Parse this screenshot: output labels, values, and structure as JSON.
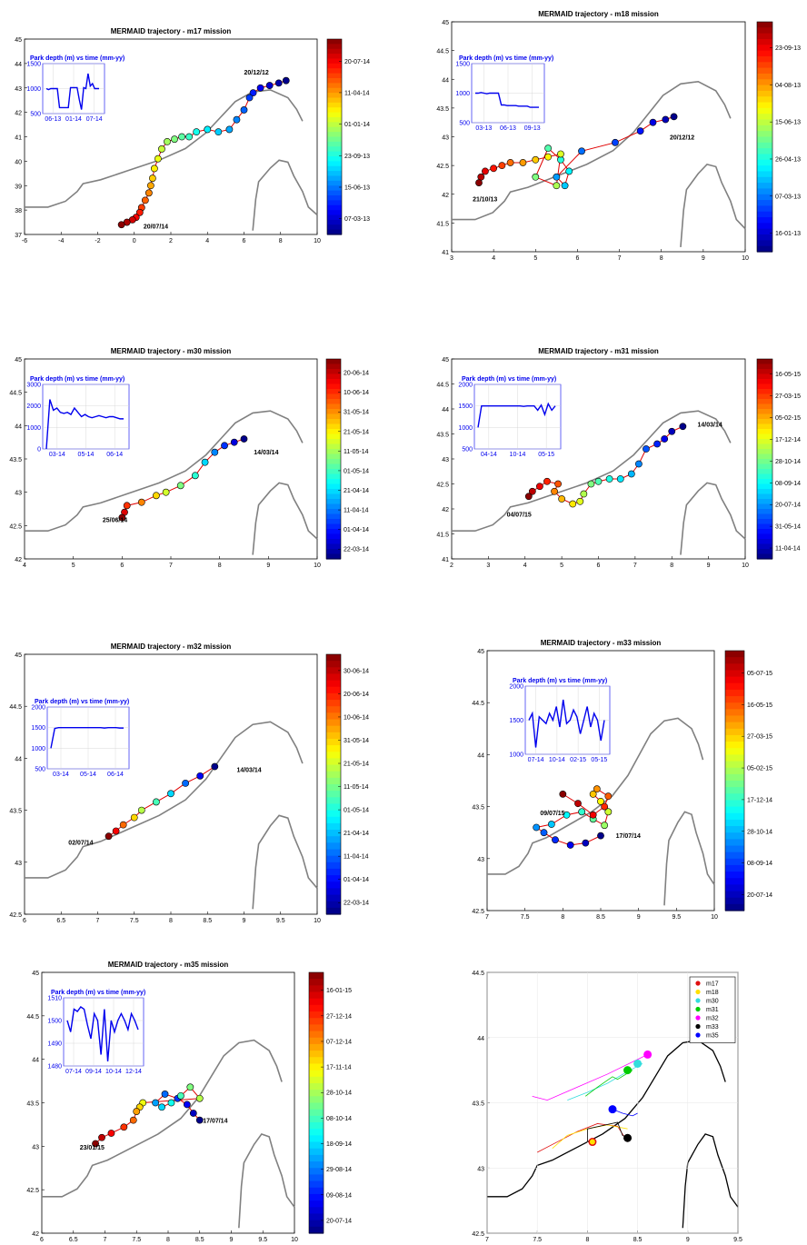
{
  "chart_data": [
    {
      "type": "scatter",
      "title": "MERMAID trajectory - m17 mission",
      "xlim": [
        -6,
        10
      ],
      "ylim": [
        37,
        45
      ],
      "xticks": [
        -6,
        -4,
        -2,
        0,
        2,
        4,
        6,
        8,
        10
      ],
      "yticks": [
        37,
        38,
        39,
        40,
        41,
        42,
        43,
        44,
        45
      ],
      "annotations": [
        {
          "text": "20/12/12",
          "x": 6.0,
          "y": 43.55
        },
        {
          "text": "20/07/14",
          "x": 0.5,
          "y": 37.25
        }
      ],
      "track_lon": [
        8.3,
        7.9,
        7.4,
        6.9,
        6.5,
        6.3,
        6.0,
        5.6,
        5.2,
        4.6,
        4.0,
        3.4,
        3.0,
        2.6,
        2.2,
        1.8,
        1.5,
        1.3,
        1.1,
        1.0,
        0.9,
        0.8,
        0.6,
        0.4,
        0.3,
        0.1,
        -0.1,
        -0.4,
        -0.7
      ],
      "track_lat": [
        43.3,
        43.2,
        43.1,
        43.0,
        42.8,
        42.6,
        42.1,
        41.7,
        41.3,
        41.2,
        41.3,
        41.2,
        41.0,
        41.0,
        40.9,
        40.8,
        40.5,
        40.1,
        39.7,
        39.3,
        39.0,
        38.7,
        38.4,
        38.1,
        37.9,
        37.7,
        37.6,
        37.5,
        37.4
      ],
      "colorbar": {
        "labels": [
          "20-07-14",
          "11-04-14",
          "01-01-14",
          "23-09-13",
          "15-06-13",
          "07-03-13"
        ]
      },
      "inset": {
        "title": "Park depth (m) vs time (mm-yy)",
        "ylim": [
          500,
          1500
        ],
        "yticks": [
          "500",
          "1000",
          "1500"
        ],
        "xticks": [
          "06-13",
          "01-14",
          "07-14"
        ],
        "values": [
          1000,
          980,
          1000,
          1000,
          1000,
          1000,
          620,
          620,
          620,
          620,
          620,
          1020,
          1020,
          1020,
          1020,
          780,
          580,
          1020,
          1000,
          1300,
          1050,
          1100,
          1000,
          1000,
          1000
        ]
      }
    },
    {
      "type": "scatter",
      "title": "MERMAID trajectory - m18 mission",
      "xlim": [
        3,
        10
      ],
      "ylim": [
        41,
        45
      ],
      "xticks": [
        3,
        4,
        5,
        6,
        7,
        8,
        9,
        10
      ],
      "yticks": [
        41,
        41.5,
        42,
        42.5,
        43,
        43.5,
        44,
        44.5,
        45
      ],
      "annotations": [
        {
          "text": "20/12/12",
          "x": 8.2,
          "y": 42.95
        },
        {
          "text": "21/10/13",
          "x": 3.5,
          "y": 41.88
        }
      ],
      "track_lon": [
        8.3,
        8.1,
        7.8,
        7.5,
        6.9,
        6.1,
        5.5,
        5.7,
        5.8,
        5.6,
        5.3,
        5.0,
        5.5,
        5.6,
        5.3,
        5.0,
        4.7,
        4.4,
        4.2,
        4.0,
        3.8,
        3.7,
        3.65
      ],
      "track_lat": [
        43.35,
        43.3,
        43.25,
        43.1,
        42.9,
        42.75,
        42.3,
        42.15,
        42.4,
        42.6,
        42.8,
        42.3,
        42.15,
        42.7,
        42.65,
        42.6,
        42.55,
        42.55,
        42.5,
        42.45,
        42.4,
        42.3,
        42.2
      ],
      "colorbar": {
        "labels": [
          "23-09-13",
          "04-08-13",
          "15-06-13",
          "26-04-13",
          "07-03-13",
          "16-01-13"
        ]
      },
      "inset": {
        "title": "Park depth (m) vs time (mm-yy)",
        "ylim": [
          500,
          1500
        ],
        "yticks": [
          "500",
          "1000",
          "1500"
        ],
        "xticks": [
          "03-13",
          "06-13",
          "09-13"
        ],
        "values": [
          1000,
          1000,
          1010,
          1000,
          990,
          1000,
          1000,
          1000,
          1000,
          800,
          800,
          790,
          790,
          790,
          790,
          780,
          780,
          780,
          780,
          760,
          760,
          760,
          760
        ]
      }
    },
    {
      "type": "scatter",
      "title": "MERMAID trajectory - m30 mission",
      "xlim": [
        4,
        10
      ],
      "ylim": [
        42,
        45
      ],
      "xticks": [
        4,
        5,
        6,
        7,
        8,
        9,
        10
      ],
      "yticks": [
        42,
        42.5,
        43,
        43.5,
        44,
        44.5,
        45
      ],
      "annotations": [
        {
          "text": "14/03/14",
          "x": 8.7,
          "y": 43.57
        },
        {
          "text": "25/06/14",
          "x": 5.6,
          "y": 42.55
        }
      ],
      "track_lon": [
        8.5,
        8.3,
        8.1,
        7.9,
        7.7,
        7.5,
        7.2,
        6.9,
        6.7,
        6.4,
        6.1,
        6.05,
        6.0
      ],
      "track_lat": [
        43.8,
        43.75,
        43.7,
        43.6,
        43.45,
        43.25,
        43.1,
        43.0,
        42.95,
        42.85,
        42.8,
        42.7,
        42.62
      ],
      "colorbar": {
        "labels": [
          "20-06-14",
          "10-06-14",
          "31-05-14",
          "21-05-14",
          "11-05-14",
          "01-05-14",
          "21-04-14",
          "11-04-14",
          "01-04-14",
          "22-03-14"
        ]
      },
      "inset": {
        "title": "Park depth (m) vs time (mm-yy)",
        "ylim": [
          0,
          3000
        ],
        "yticks": [
          "0",
          "1000",
          "2000",
          "3000"
        ],
        "xticks": [
          "03-14",
          "05-14",
          "06-14"
        ],
        "values": [
          0,
          2300,
          1800,
          1900,
          1700,
          1650,
          1700,
          1600,
          1900,
          1700,
          1500,
          1600,
          1500,
          1450,
          1500,
          1550,
          1500,
          1450,
          1500,
          1500,
          1450,
          1400,
          1400
        ]
      }
    },
    {
      "type": "scatter",
      "title": "MERMAID trajectory - m31 mission",
      "xlim": [
        2,
        10
      ],
      "ylim": [
        41,
        45
      ],
      "xticks": [
        2,
        3,
        4,
        5,
        6,
        7,
        8,
        9,
        10
      ],
      "yticks": [
        41,
        41.5,
        42,
        42.5,
        43,
        43.5,
        44,
        44.5,
        45
      ],
      "annotations": [
        {
          "text": "14/03/14",
          "x": 8.7,
          "y": 43.65
        },
        {
          "text": "04/07/15",
          "x": 3.5,
          "y": 41.85
        }
      ],
      "track_lon": [
        8.3,
        8.0,
        7.8,
        7.6,
        7.3,
        7.1,
        6.9,
        6.6,
        6.3,
        6.0,
        5.8,
        5.6,
        5.5,
        5.3,
        5.0,
        4.8,
        4.9,
        4.6,
        4.4,
        4.2,
        4.1
      ],
      "track_lat": [
        43.65,
        43.55,
        43.4,
        43.3,
        43.2,
        42.9,
        42.7,
        42.6,
        42.6,
        42.55,
        42.5,
        42.3,
        42.15,
        42.1,
        42.2,
        42.35,
        42.5,
        42.55,
        42.45,
        42.35,
        42.25
      ],
      "colorbar": {
        "labels": [
          "16-05-15",
          "27-03-15",
          "05-02-15",
          "17-12-14",
          "28-10-14",
          "08-09-14",
          "20-07-14",
          "31-05-14",
          "11-04-14"
        ]
      },
      "inset": {
        "title": "Park depth (m) vs time (mm-yy)",
        "ylim": [
          500,
          2000
        ],
        "yticks": [
          "500",
          "1000",
          "1500",
          "2000"
        ],
        "xticks": [
          "04-14",
          "10-14",
          "05-15"
        ],
        "values": [
          1000,
          1500,
          1500,
          1500,
          1500,
          1500,
          1500,
          1500,
          1500,
          1500,
          1500,
          1500,
          1500,
          1490,
          1500,
          1500,
          1500,
          1400,
          1520,
          1300,
          1550,
          1400,
          1500
        ]
      }
    },
    {
      "type": "scatter",
      "title": "MERMAID trajectory - m32 mission",
      "xlim": [
        6,
        10
      ],
      "ylim": [
        42.5,
        45
      ],
      "xticks": [
        6,
        6.5,
        7,
        7.5,
        8,
        8.5,
        9,
        9.5,
        10
      ],
      "yticks": [
        42.5,
        43,
        43.5,
        44,
        44.5,
        45
      ],
      "annotations": [
        {
          "text": "14/03/14",
          "x": 8.9,
          "y": 43.87
        },
        {
          "text": "02/07/14",
          "x": 6.6,
          "y": 43.17
        }
      ],
      "track_lon": [
        8.6,
        8.4,
        8.2,
        8.0,
        7.8,
        7.6,
        7.5,
        7.35,
        7.25,
        7.15
      ],
      "track_lat": [
        43.92,
        43.83,
        43.76,
        43.66,
        43.58,
        43.5,
        43.43,
        43.36,
        43.3,
        43.25
      ],
      "colorbar": {
        "labels": [
          "30-06-14",
          "20-06-14",
          "10-06-14",
          "31-05-14",
          "21-05-14",
          "11-05-14",
          "01-05-14",
          "21-04-14",
          "11-04-14",
          "01-04-14",
          "22-03-14"
        ]
      },
      "inset": {
        "title": "Park depth (m) vs time (mm-yy)",
        "ylim": [
          500,
          2000
        ],
        "yticks": [
          "500",
          "1000",
          "1500",
          "2000"
        ],
        "xticks": [
          "03-14",
          "05-14",
          "06-14"
        ],
        "values": [
          1000,
          1480,
          1500,
          1500,
          1500,
          1500,
          1500,
          1500,
          1500,
          1500,
          1500,
          1500,
          1500,
          1500,
          1490,
          1500,
          1500,
          1500,
          1490,
          1490
        ]
      }
    },
    {
      "type": "scatter",
      "title": "MERMAID trajectory - m33 mission",
      "xlim": [
        7,
        10
      ],
      "ylim": [
        42.5,
        45
      ],
      "xticks": [
        7,
        7.5,
        8,
        8.5,
        9,
        9.5,
        10
      ],
      "yticks": [
        42.5,
        43,
        43.5,
        44,
        44.5,
        45
      ],
      "annotations": [
        {
          "text": "09/07/15",
          "x": 7.7,
          "y": 43.42
        },
        {
          "text": "17/07/14",
          "x": 8.7,
          "y": 43.2
        }
      ],
      "track_lon": [
        8.5,
        8.3,
        8.1,
        7.9,
        7.75,
        7.65,
        7.85,
        8.05,
        8.25,
        8.4,
        8.55,
        8.6,
        8.5,
        8.4,
        8.45,
        8.6,
        8.55,
        8.4,
        8.2,
        8.0
      ],
      "track_lat": [
        43.22,
        43.15,
        43.13,
        43.18,
        43.25,
        43.3,
        43.33,
        43.42,
        43.45,
        43.38,
        43.32,
        43.45,
        43.55,
        43.62,
        43.67,
        43.6,
        43.5,
        43.42,
        43.53,
        43.62
      ],
      "colorbar": {
        "labels": [
          "05-07-15",
          "16-05-15",
          "27-03-15",
          "05-02-15",
          "17-12-14",
          "28-10-14",
          "08-09-14",
          "20-07-14"
        ]
      },
      "inset": {
        "title": "Park depth (m) vs time (mm-yy)",
        "ylim": [
          1000,
          2000
        ],
        "yticks": [
          "1000",
          "1500",
          "2000"
        ],
        "xticks": [
          "07-14",
          "10-14",
          "02-15",
          "05-15"
        ],
        "values": [
          1500,
          1600,
          1100,
          1550,
          1500,
          1450,
          1600,
          1500,
          1700,
          1400,
          1800,
          1450,
          1500,
          1650,
          1550,
          1300,
          1500,
          1700,
          1400,
          1600,
          1500,
          1200,
          1500
        ]
      }
    },
    {
      "type": "scatter",
      "title": "MERMAID trajectory - m35 mission",
      "xlim": [
        6,
        10
      ],
      "ylim": [
        42,
        45
      ],
      "xticks": [
        6,
        6.5,
        7,
        7.5,
        8,
        8.5,
        9,
        9.5,
        10
      ],
      "yticks": [
        42,
        42.5,
        43,
        43.5,
        44,
        44.5,
        45
      ],
      "annotations": [
        {
          "text": "17/07/14",
          "x": 8.55,
          "y": 43.27
        },
        {
          "text": "23/01/15",
          "x": 6.6,
          "y": 42.96
        }
      ],
      "track_lon": [
        8.5,
        8.4,
        8.3,
        8.15,
        7.95,
        7.8,
        7.9,
        8.05,
        8.2,
        8.35,
        8.5,
        7.6,
        7.55,
        7.5,
        7.45,
        7.3,
        7.1,
        6.95,
        6.85
      ],
      "track_lat": [
        43.3,
        43.38,
        43.48,
        43.55,
        43.6,
        43.5,
        43.45,
        43.5,
        43.58,
        43.68,
        43.55,
        43.5,
        43.45,
        43.4,
        43.3,
        43.22,
        43.15,
        43.1,
        43.03
      ],
      "colorbar": {
        "labels": [
          "16-01-15",
          "27-12-14",
          "07-12-14",
          "17-11-14",
          "28-10-14",
          "08-10-14",
          "18-09-14",
          "29-08-14",
          "09-08-14",
          "20-07-14"
        ]
      },
      "inset": {
        "title": "Park depth (m) vs time (mm-yy)",
        "ylim": [
          1480,
          1510
        ],
        "yticks": [
          "1480",
          "1490",
          "1500",
          "1510"
        ],
        "xticks": [
          "07-14",
          "09-14",
          "10-14",
          "12-14"
        ],
        "values": [
          1500,
          1495,
          1505,
          1504,
          1506,
          1505,
          1498,
          1492,
          1503,
          1500,
          1485,
          1505,
          1482,
          1500,
          1495,
          1500,
          1503,
          1500,
          1496,
          1503,
          1500,
          1496
        ]
      }
    },
    {
      "type": "line",
      "title": "",
      "xlim": [
        7,
        9.5
      ],
      "ylim": [
        42.5,
        44.5
      ],
      "xticks": [
        7,
        7.5,
        8,
        8.5,
        9,
        9.5
      ],
      "yticks": [
        42.5,
        43,
        43.5,
        44,
        44.5
      ],
      "legend_position": "top-right",
      "series": [
        {
          "name": "m17",
          "color": "#e01010",
          "x": [
            7.5,
            7.7,
            7.9,
            8.1,
            8.3,
            8.4
          ],
          "y": [
            43.12,
            43.2,
            43.28,
            43.34,
            43.32,
            43.2
          ]
        },
        {
          "name": "m18",
          "color": "#ffe000",
          "x": [
            8.4,
            8.2,
            8.0,
            7.8,
            7.65
          ],
          "y": [
            43.3,
            43.33,
            43.3,
            43.25,
            43.15
          ]
        },
        {
          "name": "m30",
          "color": "#33dddd",
          "x": [
            7.8,
            8.0,
            8.2,
            8.4,
            8.55
          ],
          "y": [
            43.52,
            43.58,
            43.65,
            43.74,
            43.8
          ]
        },
        {
          "name": "m31",
          "color": "#00cc00",
          "x": [
            7.98,
            8.1,
            8.25,
            8.3,
            8.45
          ],
          "y": [
            43.55,
            43.62,
            43.7,
            43.68,
            43.75
          ]
        },
        {
          "name": "m32",
          "color": "#ff00ff",
          "x": [
            7.45,
            7.6,
            7.9,
            8.2,
            8.6
          ],
          "y": [
            43.55,
            43.52,
            43.62,
            43.72,
            43.87
          ]
        },
        {
          "name": "m33",
          "color": "#000000",
          "x": [
            8.0,
            8.0,
            8.3,
            8.35,
            8.4
          ],
          "y": [
            43.2,
            43.3,
            43.35,
            43.25,
            43.23
          ]
        },
        {
          "name": "m35",
          "color": "#0000ff",
          "x": [
            8.25,
            8.35,
            8.45,
            8.5
          ],
          "y": [
            43.45,
            43.42,
            43.4,
            43.42
          ]
        }
      ],
      "end_markers": [
        {
          "series": "m17",
          "x": 8.05,
          "y": 43.2
        },
        {
          "series": "m18",
          "x": 8.05,
          "y": 43.2
        },
        {
          "series": "m30",
          "x": 8.5,
          "y": 43.8
        },
        {
          "series": "m31",
          "x": 8.4,
          "y": 43.75
        },
        {
          "series": "m32",
          "x": 8.6,
          "y": 43.87
        },
        {
          "series": "m33",
          "x": 8.4,
          "y": 43.23
        },
        {
          "series": "m35",
          "x": 8.25,
          "y": 43.45
        }
      ]
    }
  ]
}
